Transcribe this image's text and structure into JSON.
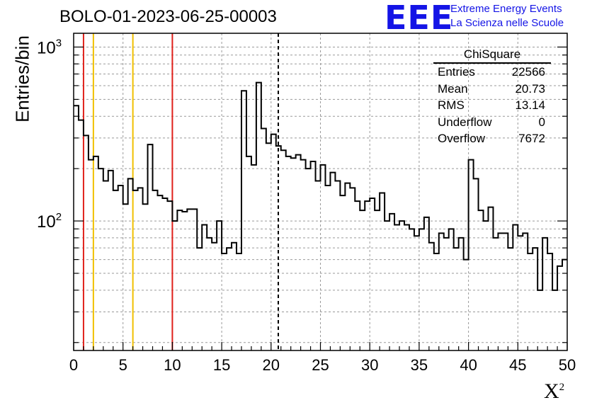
{
  "title": "BOLO-01-2023-06-25-00003",
  "logo": {
    "mark": "EEE",
    "line1": "Extreme Energy Events",
    "line2": "La Scienza nelle Scuole",
    "color": "#1414e6"
  },
  "stats": {
    "name": "ChiSquare",
    "rows": [
      {
        "label": "Entries",
        "value": "22566"
      },
      {
        "label": "Mean",
        "value": "20.73"
      },
      {
        "label": "RMS",
        "value": "13.14"
      },
      {
        "label": "Underflow",
        "value": "0"
      },
      {
        "label": "Overflow",
        "value": "7672"
      }
    ]
  },
  "chart_data": {
    "type": "histogram",
    "xlabel": "X",
    "xlabel_sup": "2",
    "ylabel": "Entries/bin",
    "xlim": [
      0,
      50
    ],
    "ylim": [
      18,
      1200
    ],
    "yscale": "log",
    "grid": true,
    "bin_width": 0.5,
    "x_ticks": [
      "0",
      "5",
      "10",
      "15",
      "20",
      "25",
      "30",
      "35",
      "40",
      "45",
      "50"
    ],
    "y_ticks": [
      {
        "base": "10",
        "exp": "2",
        "value": 100
      },
      {
        "base": "10",
        "exp": "3",
        "value": 1000
      }
    ],
    "values": [
      460,
      380,
      310,
      225,
      235,
      200,
      170,
      195,
      150,
      160,
      125,
      175,
      150,
      155,
      125,
      275,
      150,
      140,
      135,
      130,
      100,
      115,
      113,
      117,
      117,
      70,
      95,
      80,
      75,
      100,
      65,
      70,
      75,
      65,
      560,
      235,
      210,
      625,
      340,
      280,
      315,
      270,
      255,
      235,
      230,
      240,
      225,
      200,
      220,
      170,
      210,
      160,
      190,
      170,
      140,
      165,
      155,
      130,
      115,
      130,
      135,
      115,
      145,
      100,
      110,
      95,
      100,
      95,
      90,
      82,
      90,
      105,
      75,
      65,
      85,
      80,
      90,
      70,
      80,
      60,
      225,
      175,
      115,
      100,
      120,
      80,
      85,
      85,
      70,
      95,
      82,
      85,
      65,
      70,
      40,
      80,
      65,
      40,
      55,
      60
    ],
    "vlines": [
      {
        "x": 1,
        "color": "#e0201a",
        "style": "solid"
      },
      {
        "x": 2,
        "color": "#f0c000",
        "style": "solid"
      },
      {
        "x": 6,
        "color": "#f0c000",
        "style": "solid"
      },
      {
        "x": 10,
        "color": "#e0201a",
        "style": "solid"
      },
      {
        "x": 20.73,
        "color": "#000000",
        "style": "dashed"
      }
    ]
  }
}
